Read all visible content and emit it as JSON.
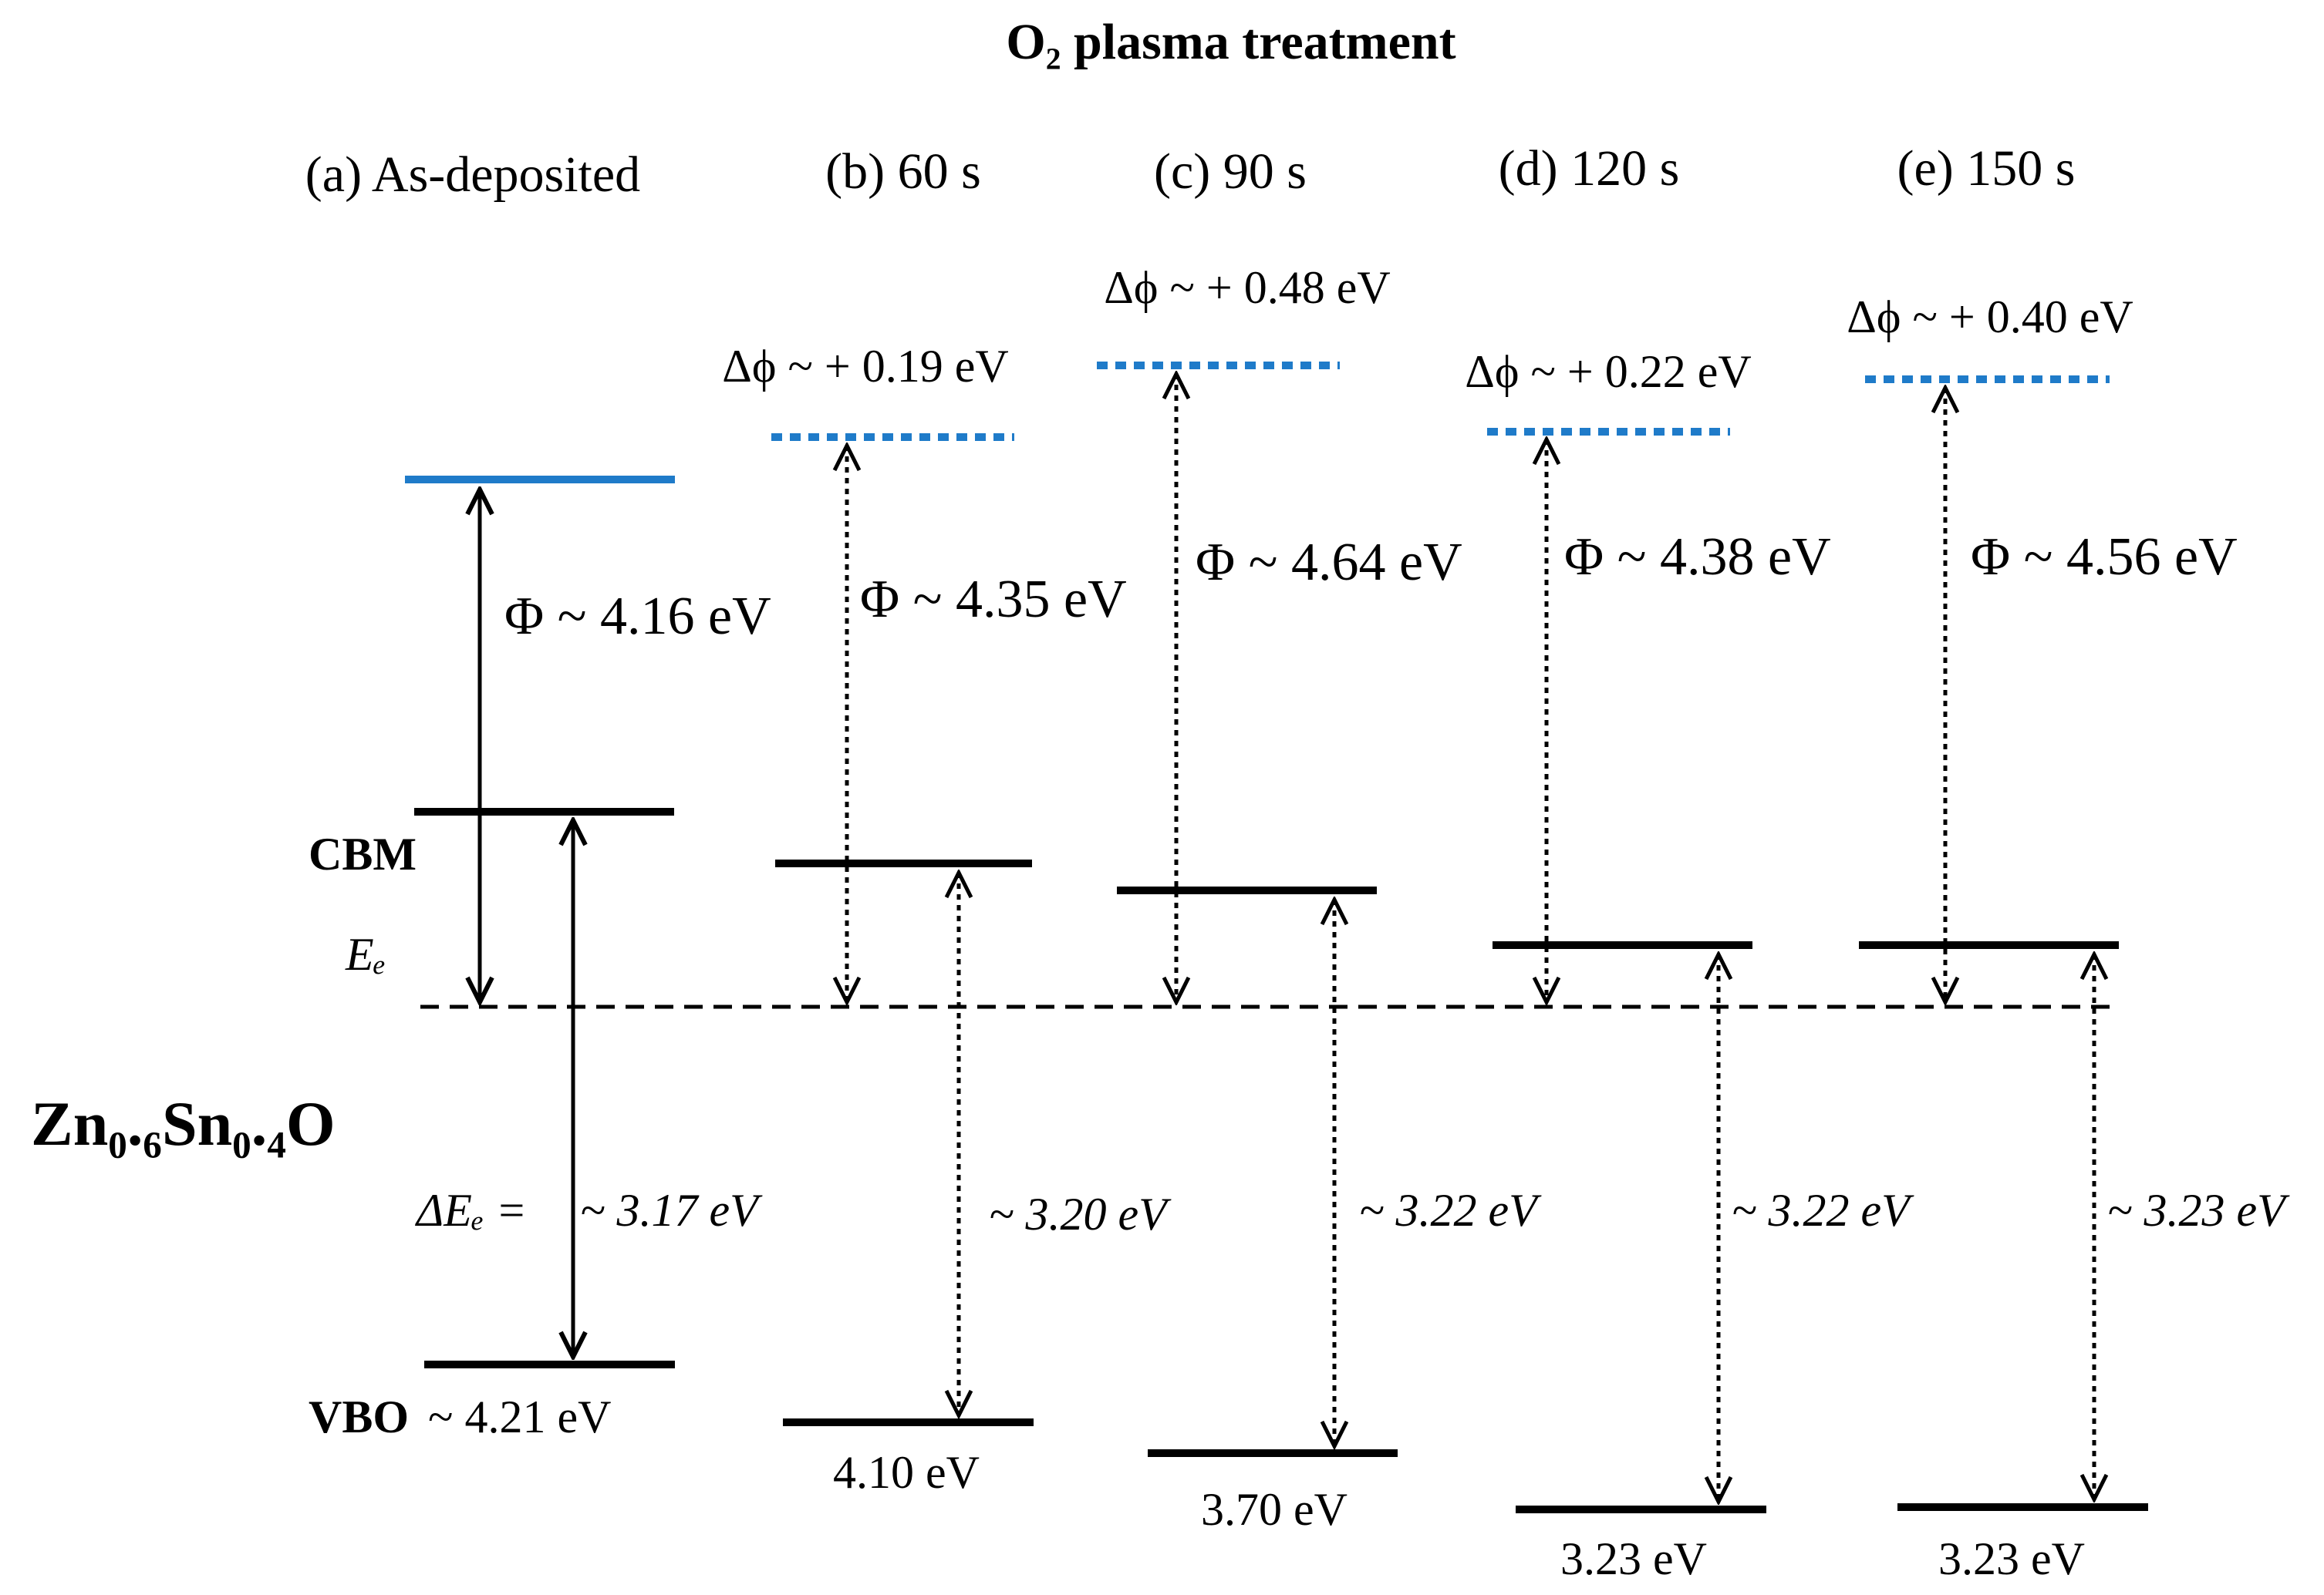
{
  "diagram": {
    "title": "O₂ plasma treatment",
    "material": "Zn₀.₆Sn₀.₄O",
    "labels": {
      "cbm": "CBM",
      "ef": "Eₑ",
      "vbo_prefix": "VBO",
      "delta_eg": "ΔEₑ ="
    },
    "colors": {
      "vacuum_level": "#1f7bc9",
      "band_edges": "#000000",
      "fermi_level": "#000000"
    },
    "panels": [
      {
        "label": "(a) As-deposited",
        "delta_phi": "",
        "phi": "Φ ~ 4.16 eV",
        "band_gap": "~ 3.17 eV",
        "valence_offset": "~ 4.21 eV",
        "line_style": "solid"
      },
      {
        "label": "(b) 60 s",
        "delta_phi": "Δϕ ~ + 0.19 eV",
        "phi": "Φ ~ 4.35 eV",
        "band_gap": "~ 3.20 eV",
        "valence_offset": "4.10 eV",
        "line_style": "dotted"
      },
      {
        "label": "(c) 90 s",
        "delta_phi": "Δϕ ~ + 0.48 eV",
        "phi": "Φ ~ 4.64 eV",
        "band_gap": "~ 3.22 eV",
        "valence_offset": "3.70 eV",
        "line_style": "dotted"
      },
      {
        "label": "(d) 120 s",
        "delta_phi": "Δϕ ~ + 0.22 eV",
        "phi": "Φ ~ 4.38 eV",
        "band_gap": "~ 3.22 eV",
        "valence_offset": "3.23 eV",
        "line_style": "dotted"
      },
      {
        "label": "(e) 150 s",
        "delta_phi": "Δϕ ~ + 0.40 eV",
        "phi": "Φ ~ 4.56 eV",
        "band_gap": "~ 3.23 eV",
        "valence_offset": "3.23 eV",
        "line_style": "dotted"
      }
    ]
  }
}
